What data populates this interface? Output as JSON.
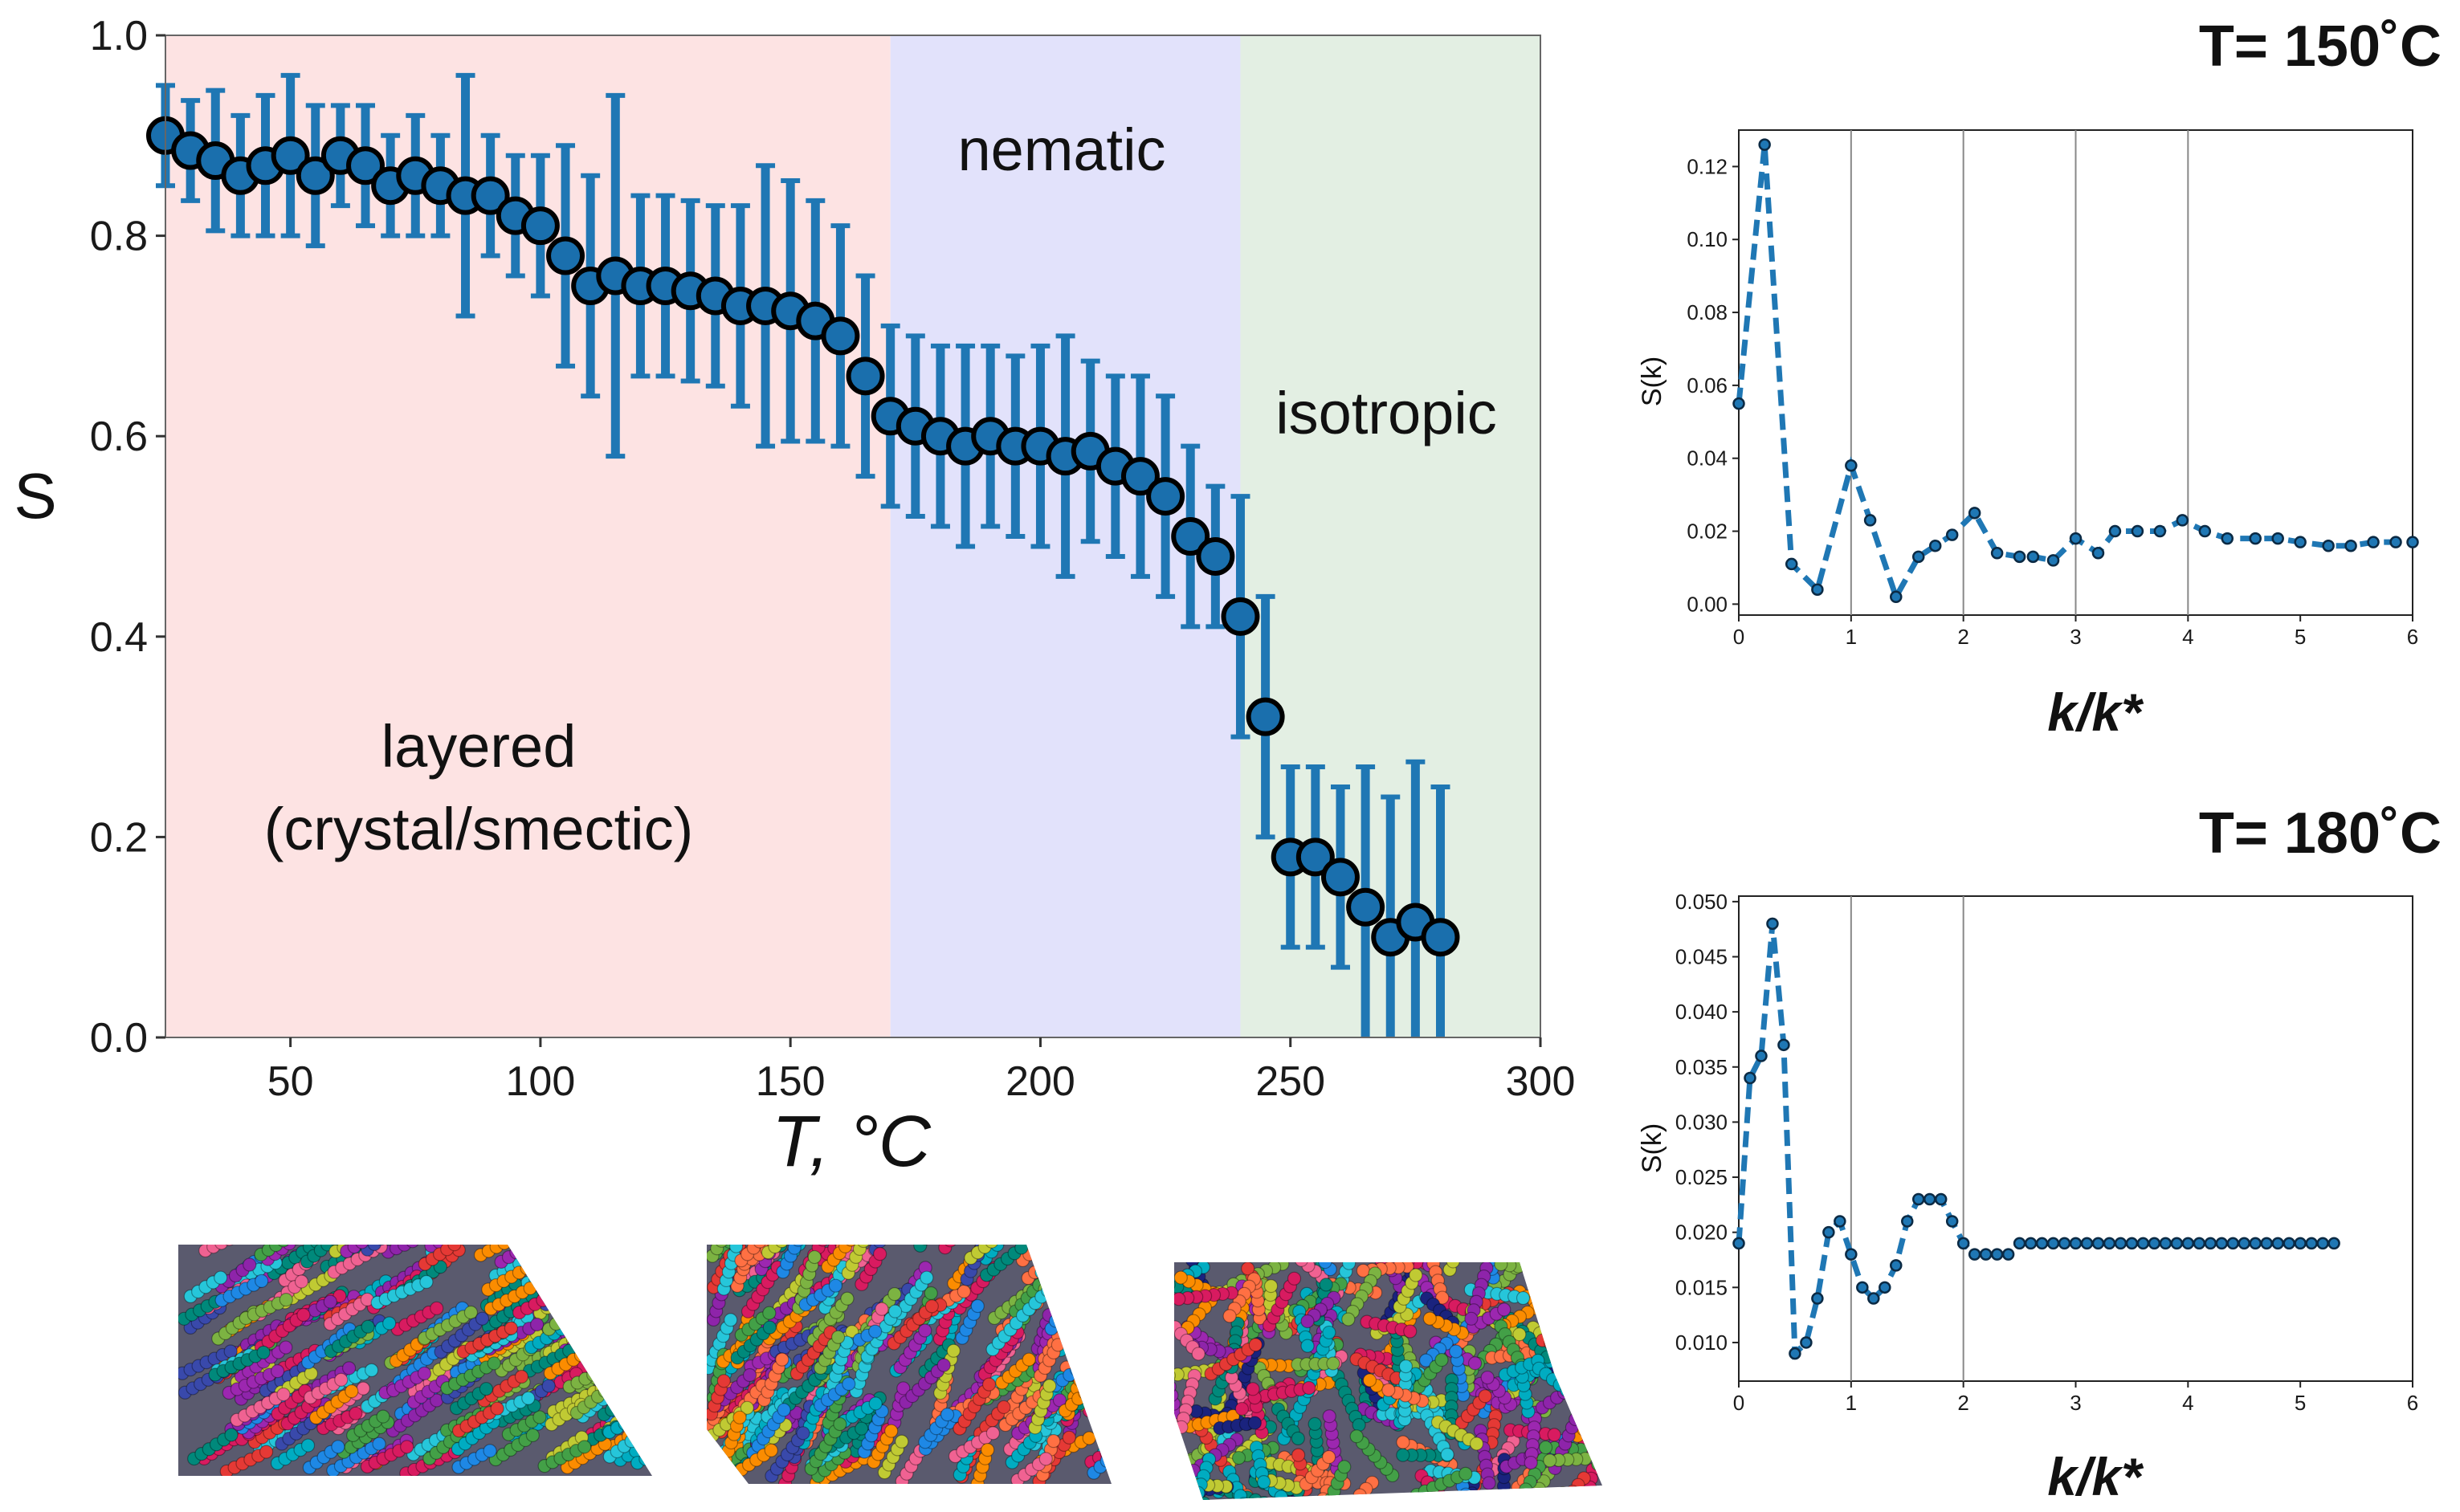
{
  "figure": {
    "colors": {
      "series": "#1f77b4",
      "marker_fill": "#1a6fad",
      "marker_edge": "#000000",
      "layered_bg": "#fde3e3",
      "nematic_bg": "#e2e2fb",
      "isotropic_bg": "#e3efe3"
    }
  },
  "chart_data": [
    {
      "id": "main",
      "type": "scatter",
      "title": "",
      "xlabel": "T, °C",
      "ylabel": "S",
      "xlim": [
        25,
        300
      ],
      "ylim": [
        0.0,
        1.0
      ],
      "xticks": [
        50,
        100,
        150,
        200,
        250,
        300
      ],
      "yticks": [
        0.0,
        0.2,
        0.4,
        0.6,
        0.8,
        1.0
      ],
      "xtick_labels": [
        "50",
        "100",
        "150",
        "200",
        "250",
        "300"
      ],
      "ytick_labels": [
        "0.0",
        "0.2",
        "0.4",
        "0.6",
        "0.8",
        "1.0"
      ],
      "regions": [
        {
          "name": "layered",
          "label_lines": [
            "layered",
            "(crystal/smectic)"
          ],
          "x_range": [
            25,
            170
          ]
        },
        {
          "name": "nematic",
          "label_lines": [
            "nematic"
          ],
          "x_range": [
            170,
            240
          ]
        },
        {
          "name": "isotropic",
          "label_lines": [
            "isotropic"
          ],
          "x_range": [
            240,
            300
          ]
        }
      ],
      "x": [
        25,
        30,
        35,
        40,
        45,
        50,
        55,
        60,
        65,
        70,
        75,
        80,
        85,
        90,
        95,
        100,
        105,
        110,
        115,
        120,
        125,
        130,
        135,
        140,
        145,
        150,
        155,
        160,
        165,
        170,
        175,
        180,
        185,
        190,
        195,
        200,
        205,
        210,
        215,
        220,
        225,
        230,
        235,
        240,
        245,
        250,
        255,
        260,
        265,
        270,
        275,
        280
      ],
      "y": [
        0.9,
        0.885,
        0.875,
        0.86,
        0.87,
        0.88,
        0.86,
        0.88,
        0.87,
        0.85,
        0.86,
        0.85,
        0.84,
        0.84,
        0.82,
        0.81,
        0.78,
        0.75,
        0.76,
        0.75,
        0.75,
        0.745,
        0.74,
        0.73,
        0.73,
        0.725,
        0.715,
        0.7,
        0.66,
        0.62,
        0.61,
        0.6,
        0.59,
        0.6,
        0.59,
        0.59,
        0.58,
        0.585,
        0.57,
        0.56,
        0.54,
        0.5,
        0.48,
        0.42,
        0.32,
        0.18,
        0.18,
        0.16,
        0.13,
        0.1,
        0.115,
        0.1
      ],
      "yerr": [
        0.05,
        0.05,
        0.07,
        0.06,
        0.07,
        0.08,
        0.07,
        0.05,
        0.06,
        0.05,
        0.06,
        0.05,
        0.12,
        0.06,
        0.06,
        0.07,
        0.11,
        0.11,
        0.18,
        0.09,
        0.09,
        0.09,
        0.09,
        0.1,
        0.14,
        0.13,
        0.12,
        0.11,
        0.1,
        0.09,
        0.09,
        0.09,
        0.1,
        0.09,
        0.09,
        0.1,
        0.12,
        0.09,
        0.09,
        0.1,
        0.1,
        0.09,
        0.07,
        0.12,
        0.12,
        0.09,
        0.09,
        0.09,
        0.14,
        0.14,
        0.16,
        0.15
      ]
    },
    {
      "id": "sk150",
      "type": "line",
      "title": "T= 150˚C",
      "xlabel": "k/k*",
      "ylabel": "S(k)",
      "xlim": [
        0,
        6
      ],
      "ylim": [
        -0.003,
        0.13
      ],
      "xticks": [
        0,
        1,
        2,
        3,
        4,
        5,
        6
      ],
      "yticks": [
        0.0,
        0.02,
        0.04,
        0.06,
        0.08,
        0.1,
        0.12
      ],
      "xtick_labels": [
        "0",
        "1",
        "2",
        "3",
        "4",
        "5",
        "6"
      ],
      "ytick_labels": [
        "0.00",
        "0.02",
        "0.04",
        "0.06",
        "0.08",
        "0.10",
        "0.12"
      ],
      "vlines": [
        1,
        2,
        3,
        4
      ],
      "x": [
        0,
        0.23,
        0.47,
        0.7,
        1.0,
        1.17,
        1.4,
        1.6,
        1.75,
        1.9,
        2.1,
        2.3,
        2.5,
        2.62,
        2.8,
        3.0,
        3.2,
        3.35,
        3.55,
        3.75,
        3.95,
        4.15,
        4.35,
        4.6,
        4.8,
        5.0,
        5.25,
        5.45,
        5.65,
        5.85,
        6.0
      ],
      "y": [
        0.055,
        0.126,
        0.011,
        0.004,
        0.038,
        0.023,
        0.002,
        0.013,
        0.016,
        0.019,
        0.025,
        0.014,
        0.013,
        0.013,
        0.012,
        0.018,
        0.014,
        0.02,
        0.02,
        0.02,
        0.023,
        0.02,
        0.018,
        0.018,
        0.018,
        0.017,
        0.016,
        0.016,
        0.017,
        0.017,
        0.017
      ]
    },
    {
      "id": "sk180",
      "type": "line",
      "title": "T= 180˚C",
      "xlabel": "k/k*",
      "ylabel": "S(k)",
      "xlim": [
        0,
        6
      ],
      "ylim": [
        0.0065,
        0.0505
      ],
      "xticks": [
        0,
        1,
        2,
        3,
        4,
        5,
        6
      ],
      "yticks": [
        0.01,
        0.015,
        0.02,
        0.025,
        0.03,
        0.035,
        0.04,
        0.045,
        0.05
      ],
      "xtick_labels": [
        "0",
        "1",
        "2",
        "3",
        "4",
        "5",
        "6"
      ],
      "ytick_labels": [
        "0.010",
        "0.015",
        "0.020",
        "0.025",
        "0.030",
        "0.035",
        "0.040",
        "0.045",
        "0.050"
      ],
      "vlines": [
        1,
        2
      ],
      "x": [
        0,
        0.1,
        0.2,
        0.3,
        0.4,
        0.5,
        0.6,
        0.7,
        0.8,
        0.9,
        1.0,
        1.1,
        1.2,
        1.3,
        1.4,
        1.5,
        1.6,
        1.7,
        1.8,
        1.9,
        2.0,
        2.1,
        2.2,
        2.3,
        2.4,
        2.5,
        2.6,
        2.7,
        2.8,
        2.9,
        3.0,
        3.1,
        3.2,
        3.3,
        3.4,
        3.5,
        3.6,
        3.7,
        3.8,
        3.9,
        4.0,
        4.1,
        4.2,
        4.3,
        4.4,
        4.5,
        4.6,
        4.7,
        4.8,
        4.9,
        5.0,
        5.1,
        5.2,
        5.3
      ],
      "y": [
        0.019,
        0.034,
        0.036,
        0.048,
        0.037,
        0.009,
        0.01,
        0.014,
        0.02,
        0.021,
        0.018,
        0.015,
        0.014,
        0.015,
        0.017,
        0.021,
        0.023,
        0.023,
        0.023,
        0.021,
        0.019,
        0.018,
        0.018,
        0.018,
        0.018,
        0.019,
        0.019,
        0.019,
        0.019,
        0.019,
        0.019,
        0.019,
        0.019,
        0.019,
        0.019,
        0.019,
        0.019,
        0.019,
        0.019,
        0.019,
        0.019,
        0.019,
        0.019,
        0.019,
        0.019,
        0.019,
        0.019,
        0.019,
        0.019,
        0.019,
        0.019,
        0.019,
        0.019,
        0.019
      ]
    }
  ],
  "snapshots": [
    {
      "name": "layered-snapshot",
      "palette": [
        "#e53935",
        "#1e88e5",
        "#43a047",
        "#8e24aa",
        "#00acc1",
        "#fb8c00",
        "#d81b60",
        "#7cb342",
        "#3949ab",
        "#26c6da",
        "#f06292",
        "#9c27b0",
        "#00897b",
        "#c0ca33"
      ]
    },
    {
      "name": "nematic-snapshot",
      "palette": [
        "#e53935",
        "#1e88e5",
        "#43a047",
        "#8e24aa",
        "#00acc1",
        "#fb8c00",
        "#d81b60",
        "#7cb342",
        "#3949ab",
        "#26c6da",
        "#f06292",
        "#9c27b0",
        "#00897b",
        "#c0ca33",
        "#ff7043"
      ]
    },
    {
      "name": "isotropic-snapshot",
      "palette": [
        "#e53935",
        "#1e88e5",
        "#43a047",
        "#8e24aa",
        "#00acc1",
        "#fb8c00",
        "#d81b60",
        "#7cb342",
        "#1a237e",
        "#26c6da",
        "#f06292",
        "#9c27b0",
        "#00897b",
        "#c0ca33",
        "#ff7043"
      ]
    }
  ]
}
